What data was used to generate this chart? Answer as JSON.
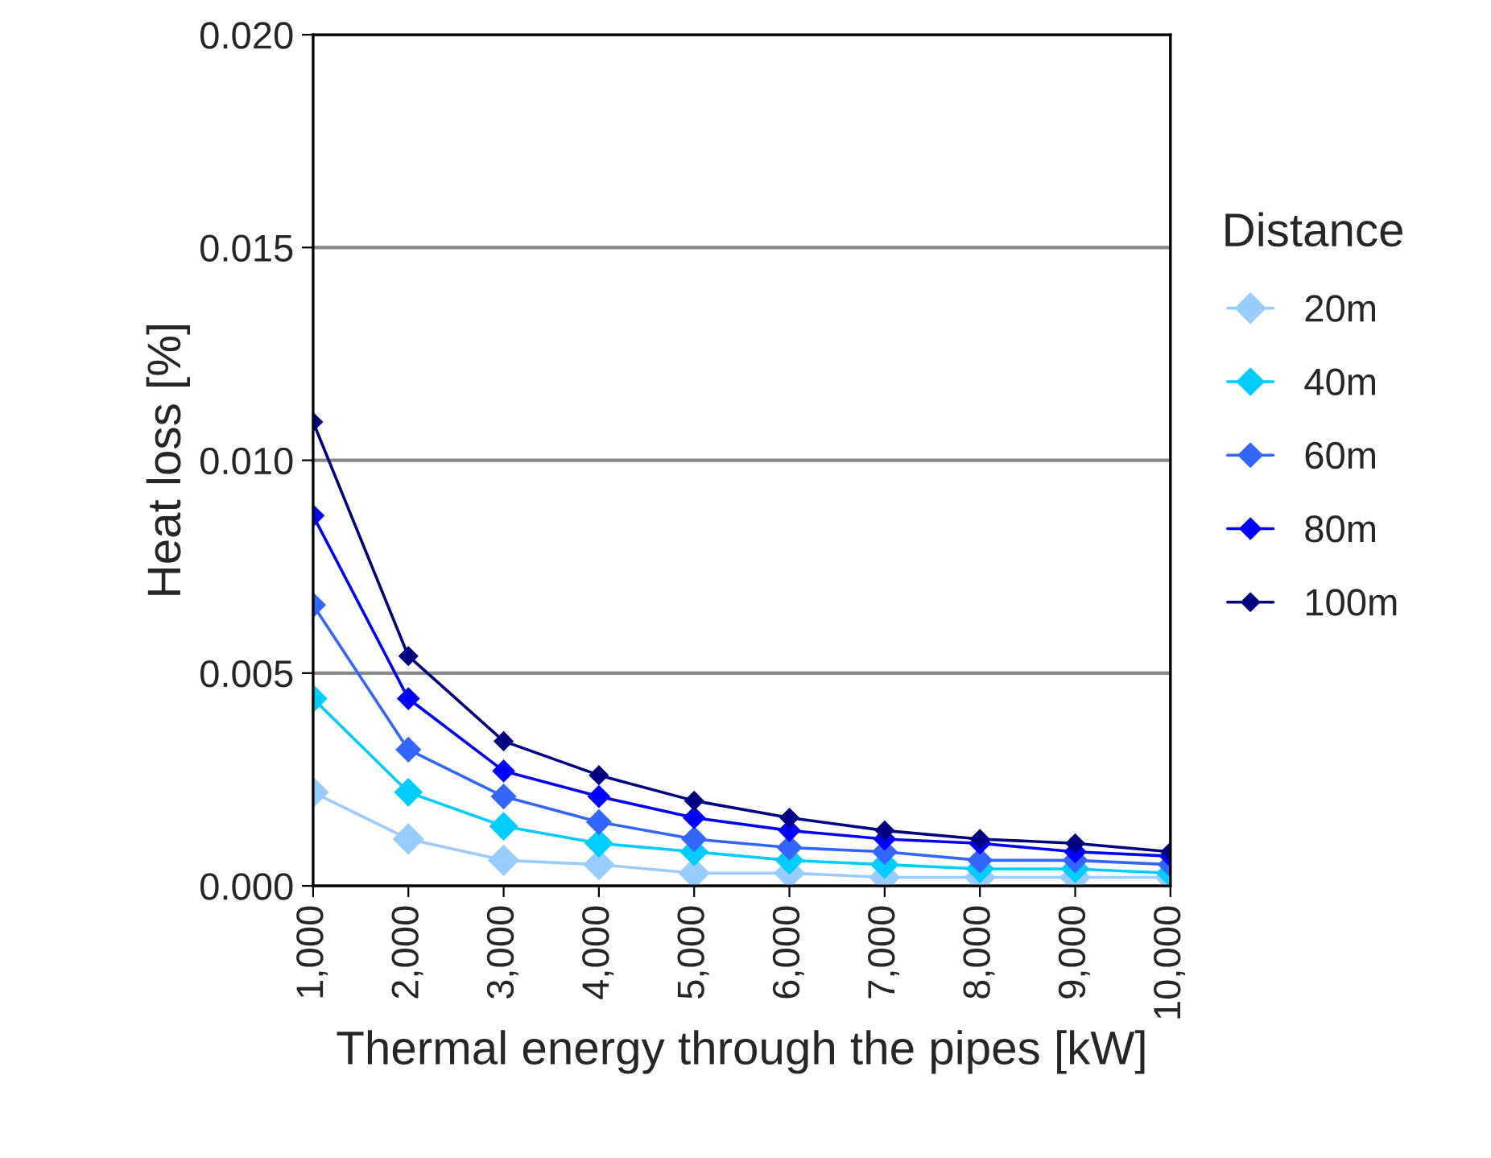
{
  "chart_data": {
    "type": "line",
    "xlabel": "Thermal energy through the pipes [kW]",
    "ylabel": "Heat loss [%]",
    "legend_title": "Distance",
    "x": [
      1000,
      2000,
      3000,
      4000,
      5000,
      6000,
      7000,
      8000,
      9000,
      10000
    ],
    "series": [
      {
        "name": "20m",
        "color": "#99ccff",
        "values": [
          0.0022,
          0.0011,
          0.0006,
          0.0005,
          0.0003,
          0.0003,
          0.0002,
          0.0002,
          0.0002,
          0.0002
        ]
      },
      {
        "name": "40m",
        "color": "#00ccff",
        "values": [
          0.0044,
          0.0022,
          0.0014,
          0.001,
          0.0008,
          0.0006,
          0.0005,
          0.0004,
          0.0004,
          0.0003
        ]
      },
      {
        "name": "60m",
        "color": "#3366ff",
        "values": [
          0.0066,
          0.0032,
          0.0021,
          0.0015,
          0.0011,
          0.0009,
          0.0008,
          0.0006,
          0.0006,
          0.0005
        ]
      },
      {
        "name": "80m",
        "color": "#0000ff",
        "values": [
          0.0087,
          0.0044,
          0.0027,
          0.0021,
          0.0016,
          0.0013,
          0.0011,
          0.001,
          0.0008,
          0.0007
        ]
      },
      {
        "name": "100m",
        "color": "#000080",
        "values": [
          0.0109,
          0.0054,
          0.0034,
          0.0026,
          0.002,
          0.0016,
          0.0013,
          0.0011,
          0.001,
          0.0008
        ]
      }
    ],
    "xlim": [
      1000,
      10000
    ],
    "xticks": [
      {
        "value": 1000,
        "label": "1,000"
      },
      {
        "value": 2000,
        "label": "2,000"
      },
      {
        "value": 3000,
        "label": "3,000"
      },
      {
        "value": 4000,
        "label": "4,000"
      },
      {
        "value": 5000,
        "label": "5,000"
      },
      {
        "value": 6000,
        "label": "6,000"
      },
      {
        "value": 7000,
        "label": "7,000"
      },
      {
        "value": 8000,
        "label": "8,000"
      },
      {
        "value": 9000,
        "label": "9,000"
      },
      {
        "value": 10000,
        "label": "10,000"
      }
    ],
    "ylim": [
      0,
      0.02
    ],
    "yticks": [
      {
        "value": 0,
        "label": "0.000"
      },
      {
        "value": 0.005,
        "label": "0.005"
      },
      {
        "value": 0.01,
        "label": "0.010"
      },
      {
        "value": 0.015,
        "label": "0.015"
      },
      {
        "value": 0.02,
        "label": "0.020"
      }
    ],
    "grid": "y",
    "legend": "right",
    "marker": "diamond",
    "line_style": "solid"
  }
}
